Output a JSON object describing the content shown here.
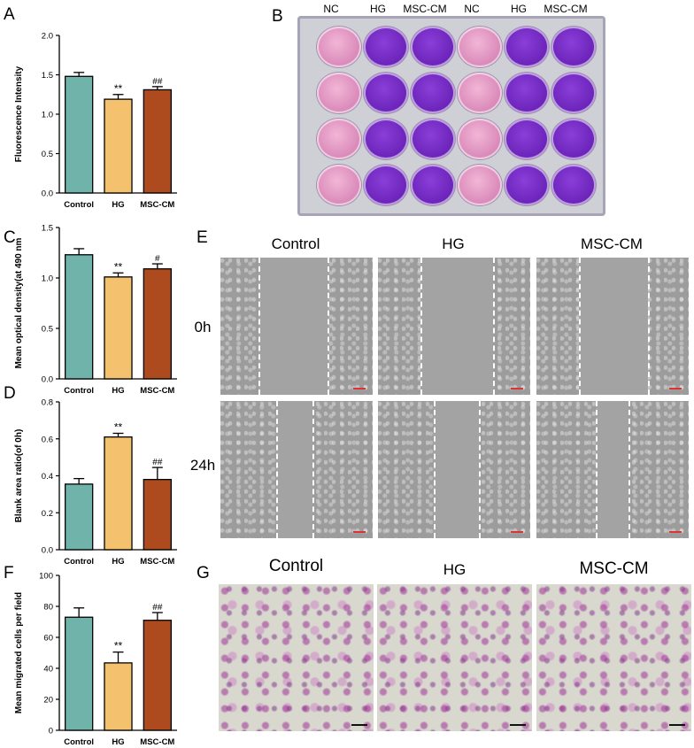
{
  "panels": {
    "A": "A",
    "B": "B",
    "C": "C",
    "D": "D",
    "E": "E",
    "F": "F",
    "G": "G"
  },
  "plate": {
    "headers": [
      "NC",
      "HG",
      "MSC-CM",
      "NC",
      "HG",
      "MSC-CM"
    ],
    "column_colors": [
      "pink",
      "purple",
      "purple",
      "pink",
      "purple",
      "purple"
    ],
    "rows": 4
  },
  "wound_healing": {
    "columns": [
      "Control",
      "HG",
      "MSC-CM"
    ],
    "rows": [
      "0h",
      "24h"
    ]
  },
  "transwell": {
    "columns": [
      "Control",
      "HG",
      "MSC-CM"
    ]
  },
  "colors": {
    "control": "#6fb3ab",
    "hg": "#f4c16e",
    "msccm": "#ad4b1e"
  },
  "chart_data": [
    {
      "id": "A",
      "type": "bar",
      "categories": [
        "Control",
        "HG",
        "MSC-CM"
      ],
      "values": [
        1.48,
        1.19,
        1.31
      ],
      "errors": [
        0.05,
        0.06,
        0.04
      ],
      "annotations": [
        "",
        "**",
        "##"
      ],
      "ylabel": "Fluorescence Intensity",
      "ylim": [
        0,
        2.0
      ],
      "yticks": [
        "0.0",
        "0.5",
        "1.0",
        "1.5",
        "2.0"
      ]
    },
    {
      "id": "C",
      "type": "bar",
      "categories": [
        "Control",
        "HG",
        "MSC-CM"
      ],
      "values": [
        1.23,
        1.01,
        1.09
      ],
      "errors": [
        0.06,
        0.04,
        0.05
      ],
      "annotations": [
        "",
        "**",
        "#"
      ],
      "ylabel": "Mean optical density(at 490 nm",
      "ylim": [
        0,
        1.5
      ],
      "yticks": [
        "0.0",
        "0.5",
        "1.0",
        "1.5"
      ]
    },
    {
      "id": "D",
      "type": "bar",
      "categories": [
        "Control",
        "HG",
        "MSC-CM"
      ],
      "values": [
        0.355,
        0.61,
        0.38
      ],
      "errors": [
        0.03,
        0.02,
        0.065
      ],
      "annotations": [
        "",
        "**",
        "##"
      ],
      "ylabel": "Blank area ratio(of 0h)",
      "ylim": [
        0,
        0.8
      ],
      "yticks": [
        "0.0",
        "0.2",
        "0.4",
        "0.6",
        "0.8"
      ]
    },
    {
      "id": "F",
      "type": "bar",
      "categories": [
        "Control",
        "HG",
        "MSC-CM"
      ],
      "values": [
        73,
        43.5,
        71
      ],
      "errors": [
        6,
        7,
        5
      ],
      "annotations": [
        "",
        "**",
        "##"
      ],
      "ylabel": "Mean migrated cells per field",
      "ylim": [
        0,
        100
      ],
      "yticks": [
        "0",
        "20",
        "40",
        "60",
        "80",
        "100"
      ]
    }
  ]
}
